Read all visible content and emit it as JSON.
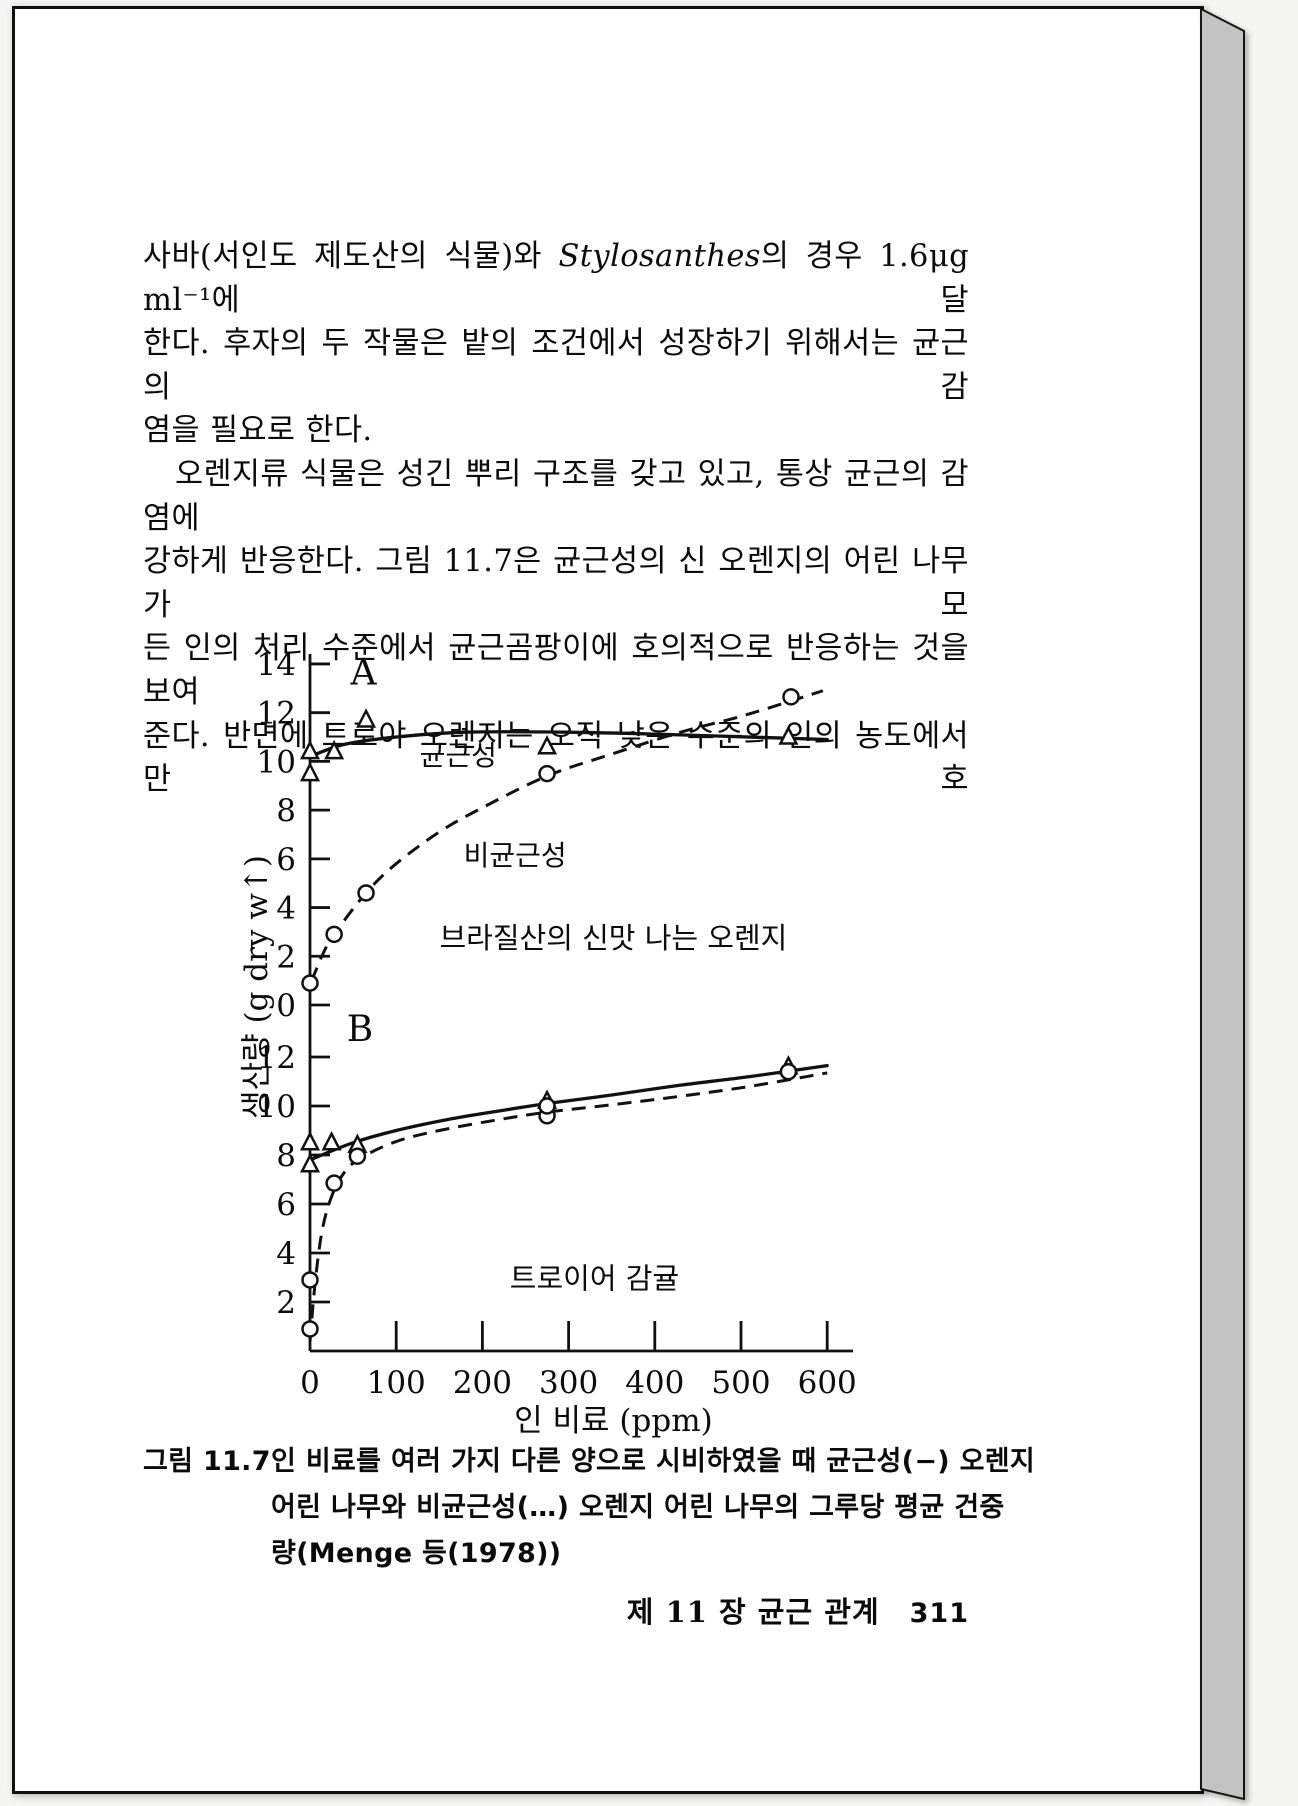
{
  "document": {
    "paragraphs": {
      "p1_line1_pre": "사바(서인도 제도산의 식물)와 ",
      "p1_line1_italic": "Stylosanthes",
      "p1_line1_post": "의 경우 1.6μg ml⁻¹에 달",
      "p1_line2": "한다. 후자의 두 작물은 밭의 조건에서 성장하기 위해서는 균근의 감",
      "p1_line3": "염을 필요로 한다.",
      "p2_line1": "오렌지류 식물은 성긴 뿌리 구조를 갖고 있고, 통상 균근의 감염에",
      "p2_line2": "강하게 반응한다. 그림 11.7은 균근성의 신 오렌지의 어린 나무가 모",
      "p2_line3": "든 인의 처리 수준에서 균근곰팡이에 호의적으로 반응하는 것을 보여",
      "p2_line4": "준다. 반면에 트로야 오렌지는 오직 낮은 수준의 인의 농도에서만 호"
    },
    "caption": {
      "label": "그림 11.7",
      "line1": "인 비료를 여러 가지 다른 양으로 시비하였을 때 균근성(−) 오렌지",
      "line2": "어린 나무와 비균근성(…) 오렌지 어린 나무의 그루당 평균 건중",
      "line3": "량(Menge 등(1978))"
    },
    "footer": {
      "chapter": "제 11 장  균근 관계",
      "page_number": "311"
    }
  },
  "chart_data": {
    "type": "line",
    "title": "",
    "xlabel": "인 비료 (ppm)",
    "ylabel": "생산량 (g dry w↑)",
    "x_ticks": [
      0,
      100,
      200,
      300,
      400,
      500,
      600
    ],
    "xlim": [
      0,
      630
    ],
    "grid": false,
    "legend_position": "inline-annotations",
    "panels": [
      {
        "id": "A",
        "subject": "브라질산의 신맛 나는 오렌지",
        "y_ticks": [
          0,
          2,
          4,
          6,
          8,
          10,
          12,
          14
        ],
        "ylim": [
          0,
          14.5
        ],
        "series": [
          {
            "name": "균근성",
            "line_style": "solid",
            "marker": "triangle",
            "curve": [
              [
                0,
                10.2
              ],
              [
                40,
                10.7
              ],
              [
                100,
                11.0
              ],
              [
                180,
                11.2
              ],
              [
                300,
                11.2
              ],
              [
                420,
                11.1
              ],
              [
                510,
                11.0
              ],
              [
                600,
                10.9
              ]
            ],
            "points": [
              [
                0,
                10.4
              ],
              [
                0,
                9.5
              ],
              [
                28,
                10.4
              ],
              [
                65,
                11.7
              ],
              [
                275,
                10.6
              ],
              [
                555,
                11.0
              ]
            ]
          },
          {
            "name": "비균근성",
            "line_style": "dashed",
            "marker": "circle",
            "curve": [
              [
                2,
                1.0
              ],
              [
                15,
                2.1
              ],
              [
                28,
                2.9
              ],
              [
                65,
                4.6
              ],
              [
                100,
                5.8
              ],
              [
                150,
                7.1
              ],
              [
                200,
                8.1
              ],
              [
                275,
                9.4
              ],
              [
                350,
                10.3
              ],
              [
                430,
                11.2
              ],
              [
                505,
                11.9
              ],
              [
                595,
                12.9
              ]
            ],
            "points": [
              [
                0,
                0.9
              ],
              [
                28,
                2.9
              ],
              [
                65,
                4.6
              ],
              [
                275,
                9.5
              ],
              [
                558,
                12.65
              ]
            ]
          }
        ],
        "annotations": [
          {
            "text": "A",
            "x": 62,
            "y": 13.15,
            "size": 36
          },
          {
            "text": "균근성",
            "x": 172,
            "y": 9.85,
            "size": 28
          },
          {
            "text": "비균근성",
            "x": 238,
            "y": 5.75,
            "size": 28
          },
          {
            "text": "브라질산의 신맛 나는 오렌지",
            "x": 352,
            "y": 2.35,
            "size": 29
          }
        ]
      },
      {
        "id": "B",
        "subject": "트로이어 감귤",
        "y_ticks": [
          2,
          4,
          6,
          8,
          10,
          12
        ],
        "ylim": [
          0,
          13.3
        ],
        "series": [
          {
            "name": "균근성",
            "line_style": "solid",
            "marker": "triangle",
            "curve": [
              [
                0,
                7.8
              ],
              [
                50,
                8.5
              ],
              [
                100,
                9.0
              ],
              [
                160,
                9.45
              ],
              [
                220,
                9.8
              ],
              [
                275,
                10.1
              ],
              [
                350,
                10.45
              ],
              [
                430,
                10.85
              ],
              [
                510,
                11.2
              ],
              [
                600,
                11.65
              ]
            ],
            "points": [
              [
                0,
                8.5
              ],
              [
                0,
                7.6
              ],
              [
                25,
                8.5
              ],
              [
                55,
                8.4
              ],
              [
                275,
                10.2
              ],
              [
                555,
                11.6
              ]
            ]
          },
          {
            "name": "비균근성",
            "line_style": "dashed",
            "marker": "circle",
            "curve": [
              [
                0,
                0.4
              ],
              [
                6,
                2.8
              ],
              [
                14,
                4.9
              ],
              [
                25,
                6.3
              ],
              [
                40,
                7.3
              ],
              [
                60,
                7.9
              ],
              [
                100,
                8.55
              ],
              [
                150,
                9.0
              ],
              [
                220,
                9.45
              ],
              [
                275,
                9.75
              ],
              [
                350,
                10.05
              ],
              [
                430,
                10.4
              ],
              [
                510,
                10.8
              ],
              [
                600,
                11.35
              ]
            ],
            "points": [
              [
                0,
                0.9
              ],
              [
                0,
                2.9
              ],
              [
                28,
                6.85
              ],
              [
                55,
                7.95
              ],
              [
                275,
                9.6
              ],
              [
                275,
                10.0
              ],
              [
                555,
                11.4
              ]
            ]
          }
        ],
        "annotations": [
          {
            "text": "B",
            "x": 58,
            "y": 12.65,
            "size": 36
          },
          {
            "text": "트로이어 감귤",
            "x": 330,
            "y": 2.55,
            "size": 29
          }
        ]
      }
    ]
  }
}
